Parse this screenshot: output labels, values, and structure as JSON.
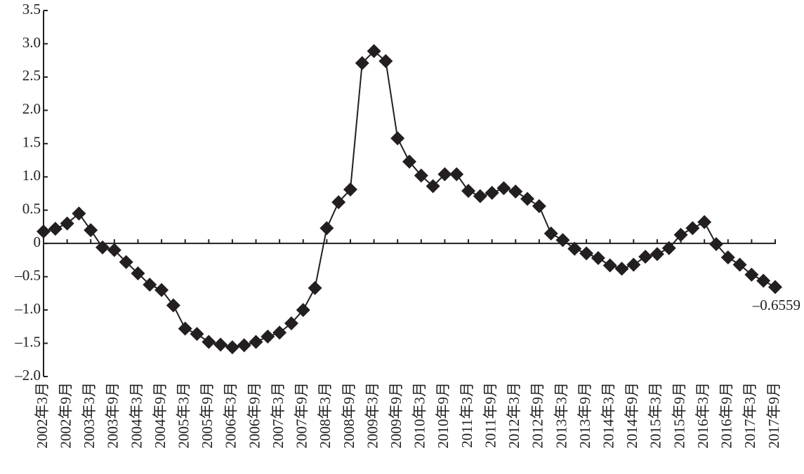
{
  "chart_data": {
    "type": "line",
    "categories": [
      "2002年3月",
      null,
      "2002年9月",
      null,
      "2003年3月",
      null,
      "2003年9月",
      null,
      "2004年3月",
      null,
      "2004年9月",
      null,
      "2005年3月",
      null,
      "2005年9月",
      null,
      "2006年3月",
      null,
      "2006年9月",
      null,
      "2007年3月",
      null,
      "2007年9月",
      null,
      "2008年3月",
      null,
      "2008年9月",
      null,
      "2009年3月",
      null,
      "2009年9月",
      null,
      "2010年3月",
      null,
      "2010年9月",
      null,
      "2011年3月",
      null,
      "2011年9月",
      null,
      "2012年3月",
      null,
      "2012年9月",
      null,
      "2013年3月",
      null,
      "2013年9月",
      null,
      "2014年3月",
      null,
      "2014年9月",
      null,
      "2015年3月",
      null,
      "2015年9月",
      null,
      "2016年3月",
      null,
      "2016年9月",
      null,
      "2017年3月",
      null,
      "2017年9月"
    ],
    "values": [
      0.18,
      0.22,
      0.3,
      0.45,
      0.2,
      -0.06,
      -0.1,
      -0.28,
      -0.45,
      -0.62,
      -0.7,
      -0.93,
      -1.28,
      -1.36,
      -1.48,
      -1.52,
      -1.56,
      -1.53,
      -1.48,
      -1.4,
      -1.34,
      -1.2,
      -1.0,
      -0.67,
      0.23,
      0.62,
      0.81,
      2.71,
      2.89,
      2.74,
      1.58,
      1.23,
      1.02,
      0.86,
      1.04,
      1.04,
      0.79,
      0.71,
      0.76,
      0.83,
      0.78,
      0.67,
      0.56,
      0.15,
      0.05,
      -0.08,
      -0.15,
      -0.22,
      -0.33,
      -0.38,
      -0.32,
      -0.2,
      -0.16,
      -0.07,
      0.13,
      0.23,
      0.32,
      -0.01,
      -0.21,
      -0.32,
      -0.47,
      -0.56,
      -0.6559
    ],
    "value_labels": [
      null,
      null,
      null,
      null,
      null,
      null,
      null,
      null,
      null,
      null,
      null,
      null,
      null,
      null,
      null,
      null,
      null,
      null,
      null,
      null,
      null,
      null,
      null,
      null,
      null,
      null,
      null,
      null,
      null,
      null,
      null,
      null,
      null,
      null,
      null,
      null,
      null,
      null,
      null,
      null,
      null,
      null,
      null,
      null,
      null,
      null,
      null,
      null,
      null,
      null,
      null,
      null,
      null,
      null,
      null,
      null,
      null,
      null,
      null,
      null,
      null,
      null,
      "–0.6559"
    ],
    "color": "#231f20",
    "ylim": [
      -2.0,
      3.5
    ],
    "yticks": [
      {
        "value": 3.5,
        "label": "3.5"
      },
      {
        "value": 3.0,
        "label": "3.0"
      },
      {
        "value": 2.5,
        "label": "2.5"
      },
      {
        "value": 2.0,
        "label": "2.0"
      },
      {
        "value": 1.5,
        "label": "1.5"
      },
      {
        "value": 1.0,
        "label": "1.0"
      },
      {
        "value": 0.5,
        "label": "0.5"
      },
      0,
      {
        "value": -0.5,
        "label": "–0.5"
      },
      {
        "value": -1.0,
        "label": "–1.0"
      },
      {
        "value": -1.5,
        "label": "–1.5"
      },
      {
        "value": -2.0,
        "label": "–2.0"
      }
    ],
    "grid": false
  }
}
